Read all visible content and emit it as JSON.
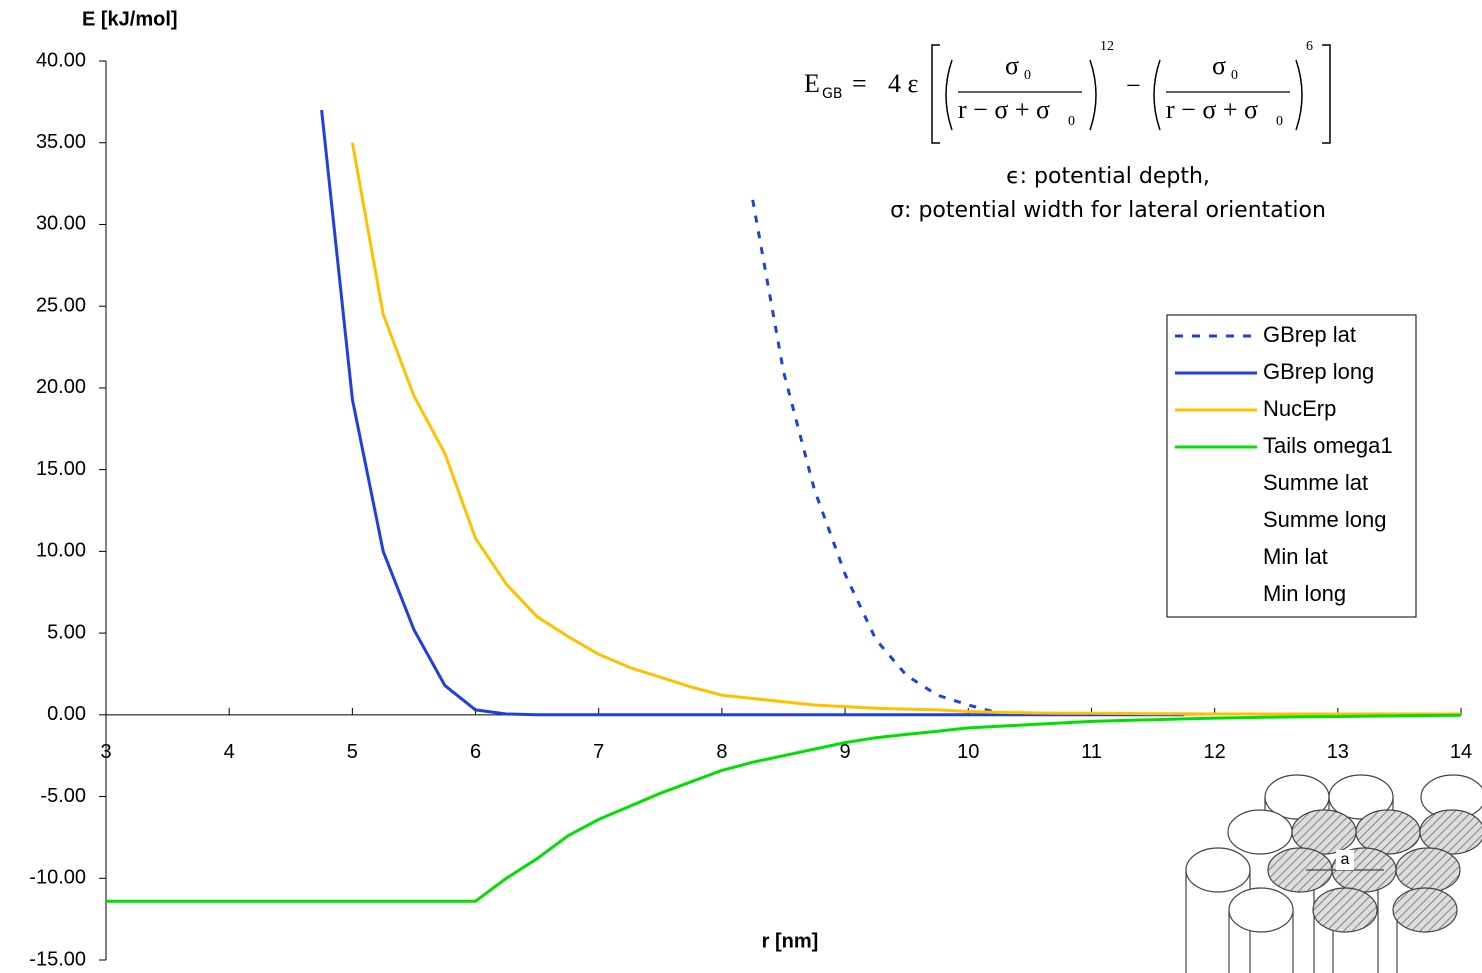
{
  "chart_data": {
    "type": "line",
    "y_label": "E [kJ/mol]",
    "x_label": "r [nm]",
    "x": [
      3,
      3.25,
      3.5,
      3.75,
      4,
      4.25,
      4.5,
      4.75,
      5,
      5.25,
      5.5,
      5.75,
      6,
      6.25,
      6.5,
      6.75,
      7,
      7.25,
      7.5,
      7.75,
      8,
      8.25,
      8.5,
      8.75,
      9,
      9.25,
      9.5,
      9.75,
      10,
      10.25,
      10.5,
      10.75,
      11,
      11.25,
      11.5,
      11.75,
      12,
      12.25,
      12.5,
      12.75,
      13,
      13.25,
      13.5,
      13.75,
      14
    ],
    "series": [
      {
        "name": "GBrep lat",
        "color": "#1f3fe0",
        "style": "dashed",
        "values": [
          null,
          null,
          null,
          null,
          null,
          null,
          null,
          null,
          null,
          null,
          null,
          null,
          null,
          null,
          null,
          null,
          null,
          null,
          null,
          null,
          null,
          31.5,
          21,
          13.8,
          8.6,
          4.6,
          2.4,
          1.2,
          0.6,
          0.1,
          null,
          null,
          null,
          null,
          null,
          null,
          null,
          null,
          null,
          null,
          null,
          null,
          null,
          null,
          null
        ]
      },
      {
        "name": "GBrep long",
        "color": "#1f3fe0",
        "style": "solid",
        "values": [
          null,
          null,
          null,
          null,
          null,
          null,
          null,
          37,
          19.3,
          10,
          5.2,
          1.8,
          0.3,
          0.05,
          0,
          0,
          0,
          0,
          0,
          0,
          0,
          0,
          0,
          0,
          0,
          0,
          0,
          0,
          0,
          0,
          0,
          0,
          0,
          0,
          0,
          0,
          null,
          null,
          null,
          null,
          null,
          null,
          null,
          null,
          null
        ]
      },
      {
        "name": "NucErp",
        "color": "#ffc000",
        "style": "solid",
        "values": [
          null,
          null,
          null,
          null,
          null,
          null,
          null,
          null,
          35,
          24.5,
          19.5,
          16,
          10.8,
          8,
          6,
          4.8,
          3.7,
          2.9,
          2.3,
          1.7,
          1.2,
          1,
          0.8,
          0.6,
          0.5,
          0.4,
          0.35,
          0.3,
          0.2,
          0.15,
          0.12,
          0.1,
          0.1,
          0.08,
          0.07,
          0.06,
          0.05,
          0.05,
          0.05,
          0.05,
          0.05,
          0.05,
          0.05,
          0.05,
          0.05
        ]
      },
      {
        "name": "Tails omega1",
        "color": "#00e000",
        "style": "solid",
        "values": [
          -11.4,
          -11.4,
          -11.4,
          -11.4,
          -11.4,
          -11.4,
          -11.4,
          -11.4,
          -11.4,
          -11.4,
          -11.4,
          -11.4,
          -11.4,
          -10,
          -8.8,
          -7.4,
          -6.4,
          -5.6,
          -4.8,
          -4.1,
          -3.4,
          -2.9,
          -2.5,
          -2.1,
          -1.7,
          -1.4,
          -1.2,
          -1,
          -0.8,
          -0.7,
          -0.6,
          -0.5,
          -0.4,
          -0.35,
          -0.3,
          -0.25,
          -0.2,
          -0.17,
          -0.14,
          -0.12,
          -0.1,
          -0.08,
          -0.06,
          -0.04,
          -0.03
        ]
      },
      {
        "name": "Summe lat",
        "color": "none",
        "style": "solid",
        "values": [
          null,
          null,
          null,
          null,
          null,
          null,
          null,
          null,
          null,
          null,
          null,
          null,
          null,
          null,
          null,
          null,
          null,
          null,
          null,
          null,
          null,
          null,
          null,
          null,
          null,
          null,
          null,
          null,
          null,
          null,
          null,
          null,
          null,
          null,
          null,
          null,
          null,
          null,
          null,
          null,
          null,
          null,
          null,
          null,
          null
        ]
      },
      {
        "name": "Summe long",
        "color": "none",
        "style": "solid",
        "values": [
          null,
          null,
          null,
          null,
          null,
          null,
          null,
          null,
          null,
          null,
          null,
          null,
          null,
          null,
          null,
          null,
          null,
          null,
          null,
          null,
          null,
          null,
          null,
          null,
          null,
          null,
          null,
          null,
          null,
          null,
          null,
          null,
          null,
          null,
          null,
          null,
          null,
          null,
          null,
          null,
          null,
          null,
          null,
          null,
          null
        ]
      },
      {
        "name": "Min lat",
        "color": "none",
        "style": "solid",
        "values": [
          null,
          null,
          null,
          null,
          null,
          null,
          null,
          null,
          null,
          null,
          null,
          null,
          null,
          null,
          null,
          null,
          null,
          null,
          null,
          null,
          null,
          null,
          null,
          null,
          null,
          null,
          null,
          null,
          null,
          null,
          null,
          null,
          null,
          null,
          null,
          null,
          null,
          null,
          null,
          null,
          null,
          null,
          null,
          null,
          null
        ]
      },
      {
        "name": "Min long",
        "color": "none",
        "style": "solid",
        "values": [
          null,
          null,
          null,
          null,
          null,
          null,
          null,
          null,
          null,
          null,
          null,
          null,
          null,
          null,
          null,
          null,
          null,
          null,
          null,
          null,
          null,
          null,
          null,
          null,
          null,
          null,
          null,
          null,
          null,
          null,
          null,
          null,
          null,
          null,
          null,
          null,
          null,
          null,
          null,
          null,
          null,
          null,
          null,
          null,
          null
        ]
      }
    ],
    "xlim": [
      3,
      14
    ],
    "ylim": [
      -15,
      40
    ],
    "xticks": [
      3,
      4,
      5,
      6,
      7,
      8,
      9,
      10,
      11,
      12,
      13,
      14
    ],
    "yticks": [
      {
        "value": 40,
        "label": "40.00"
      },
      {
        "value": 35,
        "label": "35.00"
      },
      {
        "value": 30,
        "label": "30.00"
      },
      {
        "value": 25,
        "label": "25.00"
      },
      {
        "value": 20,
        "label": "20.00"
      },
      {
        "value": 15,
        "label": "15.00"
      },
      {
        "value": 10,
        "label": "10.00"
      },
      {
        "value": 5,
        "label": "5.00"
      },
      {
        "value": 0,
        "label": "0.00"
      },
      {
        "value": -5,
        "label": "-5.00"
      },
      {
        "value": -10,
        "label": "-10.00"
      },
      {
        "value": -15,
        "label": "-15.00"
      }
    ],
    "grid": false,
    "legend": "right",
    "formula": {
      "lhs": "E",
      "lhs_sub": "GB",
      "eq": "=",
      "factor": "4 ε",
      "sigma": "σ",
      "sub0": "0",
      "denominator": "r − σ + σ",
      "exp1": "12",
      "minus": "−",
      "exp2": "6"
    },
    "annotations": [
      "ϵ: potential depth,",
      "σ: potential width for lateral orientation"
    ],
    "inset_label": "a"
  }
}
